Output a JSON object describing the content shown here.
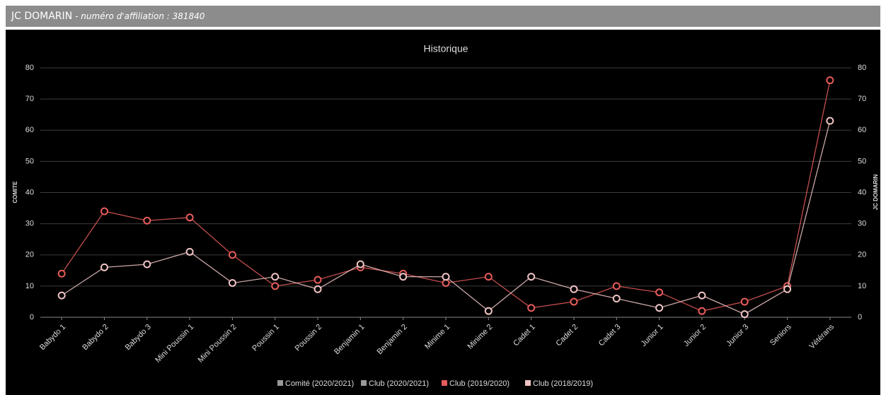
{
  "header": {
    "title": "JC DOMARIN",
    "subtitle": "- numéro d'affiliation : 381840"
  },
  "chart_data": {
    "type": "line",
    "title": "Historique",
    "y_label": "COMITE",
    "y2_label": "JC DOMARIN",
    "categories": [
      "Babydo 1",
      "Babydo 2",
      "Babydo 3",
      "Mini Poussin 1",
      "Mini Poussin 2",
      "Poussin 1",
      "Poussin 2",
      "Benjamin 1",
      "Benjamin 2",
      "Minime 1",
      "Minime 2",
      "Cadet 1",
      "Cadet 2",
      "Cadet 3",
      "Junior 1",
      "Junior 2",
      "Junior 3",
      "Seniors",
      "Vétérans"
    ],
    "series": [
      {
        "name": "Comité (2020/2021)",
        "color": "#999999",
        "values": [
          null,
          null,
          null,
          null,
          null,
          null,
          null,
          null,
          null,
          null,
          null,
          null,
          null,
          null,
          null,
          null,
          null,
          null,
          null
        ]
      },
      {
        "name": "Club (2020/2021)",
        "color": "#999999",
        "axis": "y2",
        "values": [
          null,
          null,
          null,
          null,
          null,
          null,
          null,
          null,
          null,
          null,
          null,
          null,
          null,
          null,
          null,
          null,
          null,
          null,
          null
        ]
      },
      {
        "name": "Club (2019/2020)",
        "color": "#e85c5c",
        "axis": "y2",
        "values": [
          14,
          34,
          31,
          32,
          20,
          10,
          12,
          16,
          14,
          11,
          13,
          3,
          5,
          10,
          8,
          2,
          5,
          10,
          76
        ]
      },
      {
        "name": "Club (2018/2019)",
        "color": "#f0c4c4",
        "axis": "y2",
        "values": [
          7,
          16,
          17,
          21,
          11,
          13,
          9,
          17,
          13,
          13,
          2,
          13,
          9,
          6,
          3,
          7,
          1,
          9,
          63
        ]
      }
    ],
    "ylim": [
      0,
      80
    ],
    "yticks": [
      0,
      10,
      20,
      30,
      40,
      50,
      60,
      70,
      80
    ],
    "y2lim": [
      0,
      80
    ],
    "y2ticks": [
      0,
      10,
      20,
      30,
      40,
      50,
      60,
      70,
      80
    ],
    "grid": true
  }
}
